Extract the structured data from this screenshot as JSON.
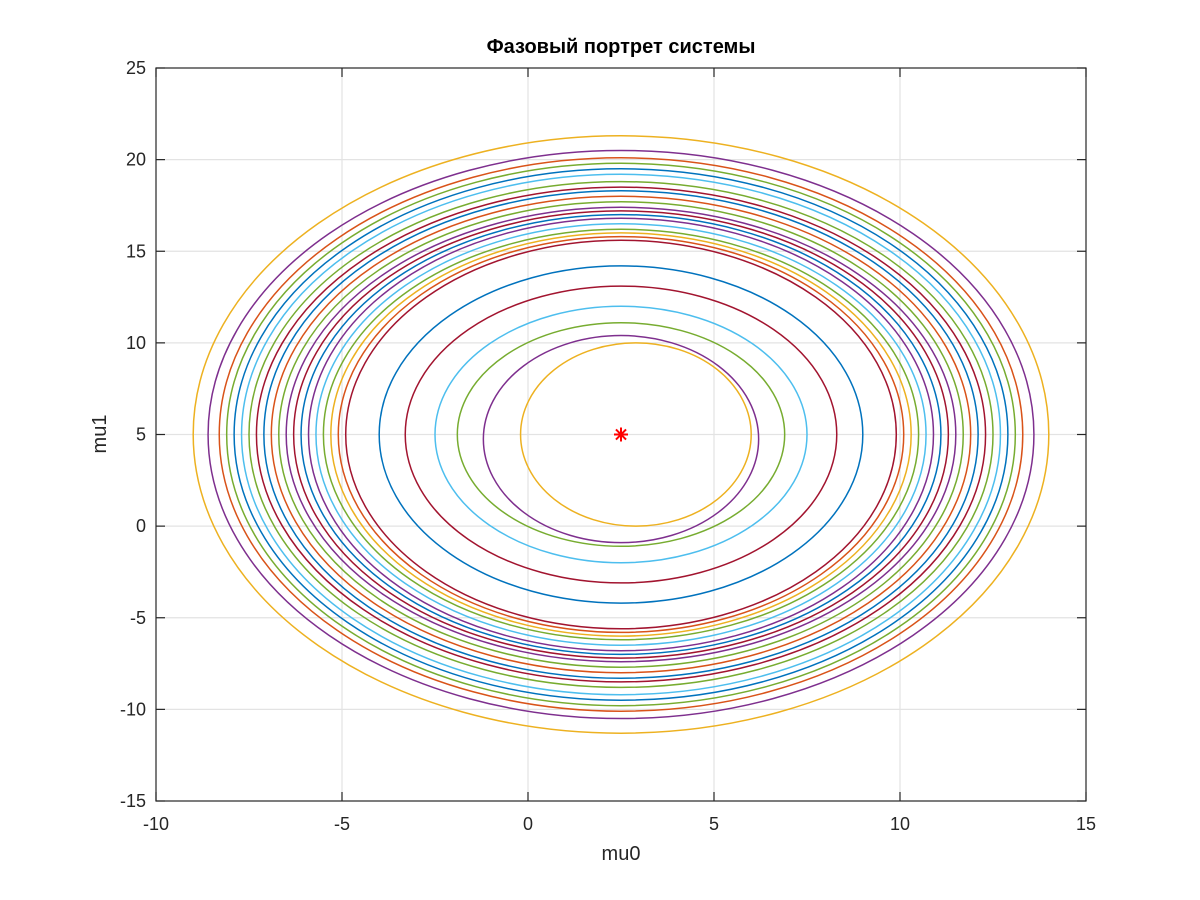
{
  "chart_data": {
    "type": "line",
    "title": "Фазовый портрет системы",
    "xlabel": "mu0",
    "ylabel": "mu1",
    "xlim": [
      -10,
      15
    ],
    "ylim": [
      -15,
      25
    ],
    "xticks": [
      -10,
      -5,
      0,
      5,
      10,
      15
    ],
    "yticks": [
      -15,
      -10,
      -5,
      0,
      5,
      10,
      15,
      20,
      25
    ],
    "xtick_labels": [
      "-10",
      "-5",
      "0",
      "5",
      "10",
      "15"
    ],
    "ytick_labels": [
      "-15",
      "-10",
      "-5",
      "0",
      "5",
      "10",
      "15",
      "20",
      "25"
    ],
    "grid": true,
    "legend": "none",
    "center": {
      "x": 2.5,
      "y": 5
    },
    "equilibrium_point": {
      "x": 2.5,
      "y": 5,
      "marker": "*",
      "color": "#ff0000"
    },
    "trajectories": [
      {
        "x_min": -0.2,
        "x_max": 6.0,
        "y_min": 0.0,
        "y_max": 10.0,
        "color": "#edb120"
      },
      {
        "x_min": -1.2,
        "x_max": 6.2,
        "y_min": -0.9,
        "y_max": 10.4,
        "color": "#7e2f8e"
      },
      {
        "x_min": -1.9,
        "x_max": 6.9,
        "y_min": -1.1,
        "y_max": 11.1,
        "color": "#77ac30"
      },
      {
        "x_min": -2.5,
        "x_max": 7.5,
        "y_min": -2.0,
        "y_max": 12.0,
        "color": "#4dbeee"
      },
      {
        "x_min": -3.3,
        "x_max": 8.3,
        "y_min": -3.1,
        "y_max": 13.1,
        "color": "#a2142f"
      },
      {
        "x_min": -4.0,
        "x_max": 9.0,
        "y_min": -4.2,
        "y_max": 14.2,
        "color": "#0072bd"
      },
      {
        "x_min": -4.9,
        "x_max": 9.9,
        "y_min": -5.6,
        "y_max": 15.6,
        "color": "#a2142f"
      },
      {
        "x_min": -5.1,
        "x_max": 10.1,
        "y_min": -5.8,
        "y_max": 15.8,
        "color": "#d95319"
      },
      {
        "x_min": -5.3,
        "x_max": 10.3,
        "y_min": -6.0,
        "y_max": 16.0,
        "color": "#edb120"
      },
      {
        "x_min": -5.5,
        "x_max": 10.5,
        "y_min": -6.2,
        "y_max": 16.2,
        "color": "#77ac30"
      },
      {
        "x_min": -5.7,
        "x_max": 10.7,
        "y_min": -6.5,
        "y_max": 16.5,
        "color": "#4dbeee"
      },
      {
        "x_min": -5.9,
        "x_max": 10.9,
        "y_min": -6.8,
        "y_max": 16.8,
        "color": "#7e2f8e"
      },
      {
        "x_min": -6.1,
        "x_max": 11.1,
        "y_min": -7.0,
        "y_max": 17.0,
        "color": "#0072bd"
      },
      {
        "x_min": -6.3,
        "x_max": 11.3,
        "y_min": -7.2,
        "y_max": 17.2,
        "color": "#a2142f"
      },
      {
        "x_min": -6.5,
        "x_max": 11.5,
        "y_min": -7.4,
        "y_max": 17.4,
        "color": "#7e2f8e"
      },
      {
        "x_min": -6.7,
        "x_max": 11.7,
        "y_min": -7.7,
        "y_max": 17.7,
        "color": "#77ac30"
      },
      {
        "x_min": -6.9,
        "x_max": 11.9,
        "y_min": -8.0,
        "y_max": 18.0,
        "color": "#d95319"
      },
      {
        "x_min": -7.1,
        "x_max": 12.1,
        "y_min": -8.3,
        "y_max": 18.3,
        "color": "#0072bd"
      },
      {
        "x_min": -7.3,
        "x_max": 12.3,
        "y_min": -8.5,
        "y_max": 18.5,
        "color": "#a2142f"
      },
      {
        "x_min": -7.5,
        "x_max": 12.5,
        "y_min": -8.8,
        "y_max": 18.8,
        "color": "#77ac30"
      },
      {
        "x_min": -7.7,
        "x_max": 12.7,
        "y_min": -9.2,
        "y_max": 19.2,
        "color": "#4dbeee"
      },
      {
        "x_min": -7.9,
        "x_max": 12.9,
        "y_min": -9.5,
        "y_max": 19.5,
        "color": "#0072bd"
      },
      {
        "x_min": -8.1,
        "x_max": 13.1,
        "y_min": -9.8,
        "y_max": 19.8,
        "color": "#77ac30"
      },
      {
        "x_min": -8.3,
        "x_max": 13.3,
        "y_min": -10.1,
        "y_max": 20.1,
        "color": "#d95319"
      },
      {
        "x_min": -8.6,
        "x_max": 13.6,
        "y_min": -10.5,
        "y_max": 20.5,
        "color": "#7e2f8e"
      },
      {
        "x_min": -9.0,
        "x_max": 14.0,
        "y_min": -11.3,
        "y_max": 21.3,
        "color": "#edb120"
      }
    ]
  }
}
